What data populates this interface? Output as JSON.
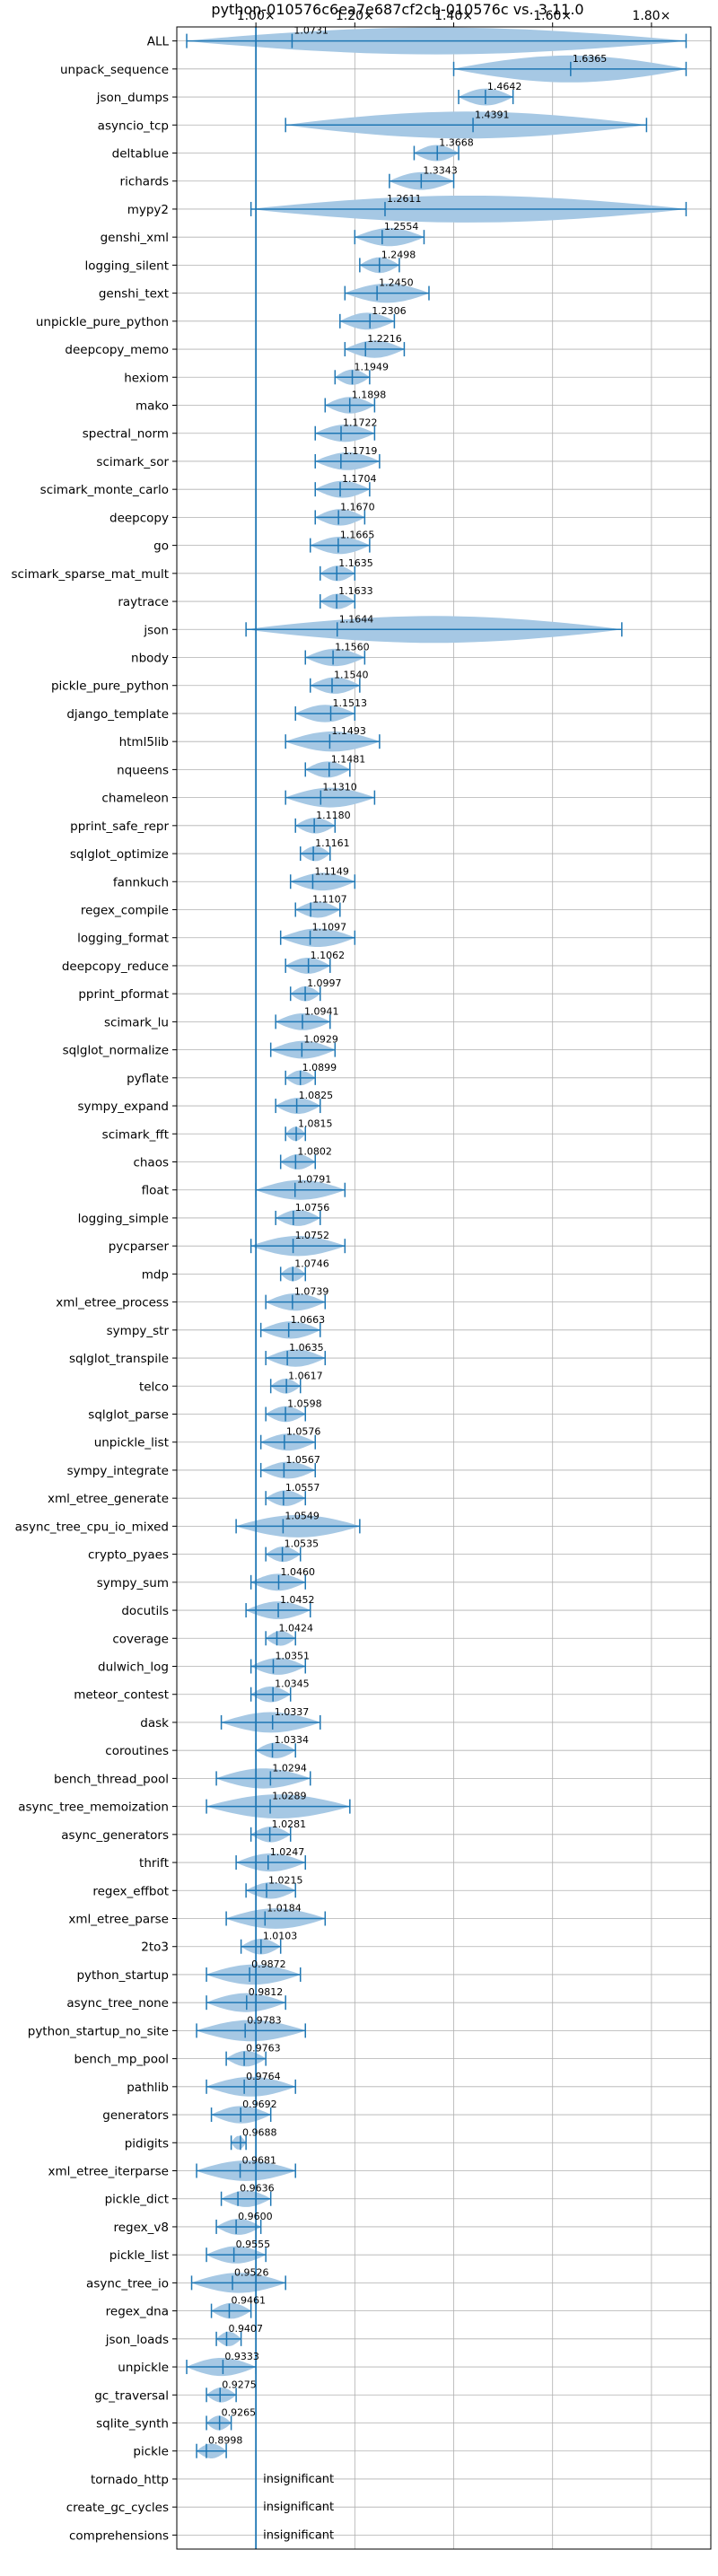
{
  "chart_data": {
    "type": "violin",
    "title": "python-010576c6ea7e687cf2cb-010576c vs. 3.11.0",
    "xlabel": "",
    "ylabel": "",
    "xlim": [
      0.84,
      1.92
    ],
    "xticks": [
      1.0,
      1.2,
      1.4,
      1.6,
      1.8
    ],
    "xtick_labels": [
      "1.00×",
      "1.20×",
      "1.40×",
      "1.60×",
      "1.80×"
    ],
    "reference_line": 1.0,
    "grid": true,
    "insignificant_label": "insignificant",
    "benchmarks": [
      {
        "name": "ALL",
        "mean_label": "1.0731",
        "mean": 1.0731,
        "min": 0.86,
        "max": 1.87
      },
      {
        "name": "unpack_sequence",
        "mean_label": "1.6365",
        "mean": 1.6365,
        "min": 1.4,
        "max": 1.87
      },
      {
        "name": "json_dumps",
        "mean_label": "1.4642",
        "mean": 1.4642,
        "min": 1.41,
        "max": 1.52
      },
      {
        "name": "asyncio_tcp",
        "mean_label": "1.4391",
        "mean": 1.4391,
        "min": 1.06,
        "max": 1.79
      },
      {
        "name": "deltablue",
        "mean_label": "1.3668",
        "mean": 1.3668,
        "min": 1.32,
        "max": 1.41
      },
      {
        "name": "richards",
        "mean_label": "1.3343",
        "mean": 1.3343,
        "min": 1.27,
        "max": 1.4
      },
      {
        "name": "mypy2",
        "mean_label": "1.2611",
        "mean": 1.2611,
        "min": 0.99,
        "max": 1.87
      },
      {
        "name": "genshi_xml",
        "mean_label": "1.2554",
        "mean": 1.2554,
        "min": 1.2,
        "max": 1.34
      },
      {
        "name": "logging_silent",
        "mean_label": "1.2498",
        "mean": 1.2498,
        "min": 1.21,
        "max": 1.29
      },
      {
        "name": "genshi_text",
        "mean_label": "1.2450",
        "mean": 1.245,
        "min": 1.18,
        "max": 1.35
      },
      {
        "name": "unpickle_pure_python",
        "mean_label": "1.2306",
        "mean": 1.2306,
        "min": 1.17,
        "max": 1.28
      },
      {
        "name": "deepcopy_memo",
        "mean_label": "1.2216",
        "mean": 1.2216,
        "min": 1.18,
        "max": 1.3
      },
      {
        "name": "hexiom",
        "mean_label": "1.1949",
        "mean": 1.1949,
        "min": 1.16,
        "max": 1.23
      },
      {
        "name": "mako",
        "mean_label": "1.1898",
        "mean": 1.1898,
        "min": 1.14,
        "max": 1.24
      },
      {
        "name": "spectral_norm",
        "mean_label": "1.1722",
        "mean": 1.1722,
        "min": 1.12,
        "max": 1.24
      },
      {
        "name": "scimark_sor",
        "mean_label": "1.1719",
        "mean": 1.1719,
        "min": 1.12,
        "max": 1.25
      },
      {
        "name": "scimark_monte_carlo",
        "mean_label": "1.1704",
        "mean": 1.1704,
        "min": 1.12,
        "max": 1.23
      },
      {
        "name": "deepcopy",
        "mean_label": "1.1670",
        "mean": 1.167,
        "min": 1.12,
        "max": 1.22
      },
      {
        "name": "go",
        "mean_label": "1.1665",
        "mean": 1.1665,
        "min": 1.11,
        "max": 1.23
      },
      {
        "name": "scimark_sparse_mat_mult",
        "mean_label": "1.1635",
        "mean": 1.1635,
        "min": 1.13,
        "max": 1.2
      },
      {
        "name": "raytrace",
        "mean_label": "1.1633",
        "mean": 1.1633,
        "min": 1.13,
        "max": 1.2
      },
      {
        "name": "json",
        "mean_label": "1.1644",
        "mean": 1.1644,
        "min": 0.98,
        "max": 1.74
      },
      {
        "name": "nbody",
        "mean_label": "1.1560",
        "mean": 1.156,
        "min": 1.1,
        "max": 1.22
      },
      {
        "name": "pickle_pure_python",
        "mean_label": "1.1540",
        "mean": 1.154,
        "min": 1.11,
        "max": 1.21
      },
      {
        "name": "django_template",
        "mean_label": "1.1513",
        "mean": 1.1513,
        "min": 1.08,
        "max": 1.2
      },
      {
        "name": "html5lib",
        "mean_label": "1.1493",
        "mean": 1.1493,
        "min": 1.06,
        "max": 1.25
      },
      {
        "name": "nqueens",
        "mean_label": "1.1481",
        "mean": 1.1481,
        "min": 1.1,
        "max": 1.19
      },
      {
        "name": "chameleon",
        "mean_label": "1.1310",
        "mean": 1.131,
        "min": 1.06,
        "max": 1.24
      },
      {
        "name": "pprint_safe_repr",
        "mean_label": "1.1180",
        "mean": 1.118,
        "min": 1.08,
        "max": 1.16
      },
      {
        "name": "sqlglot_optimize",
        "mean_label": "1.1161",
        "mean": 1.1161,
        "min": 1.09,
        "max": 1.15
      },
      {
        "name": "fannkuch",
        "mean_label": "1.1149",
        "mean": 1.1149,
        "min": 1.07,
        "max": 1.2
      },
      {
        "name": "regex_compile",
        "mean_label": "1.1107",
        "mean": 1.1107,
        "min": 1.08,
        "max": 1.17
      },
      {
        "name": "logging_format",
        "mean_label": "1.1097",
        "mean": 1.1097,
        "min": 1.05,
        "max": 1.2
      },
      {
        "name": "deepcopy_reduce",
        "mean_label": "1.1062",
        "mean": 1.1062,
        "min": 1.06,
        "max": 1.15
      },
      {
        "name": "pprint_pformat",
        "mean_label": "1.0997",
        "mean": 1.0997,
        "min": 1.07,
        "max": 1.13
      },
      {
        "name": "scimark_lu",
        "mean_label": "1.0941",
        "mean": 1.0941,
        "min": 1.04,
        "max": 1.15
      },
      {
        "name": "sqlglot_normalize",
        "mean_label": "1.0929",
        "mean": 1.0929,
        "min": 1.03,
        "max": 1.16
      },
      {
        "name": "pyflate",
        "mean_label": "1.0899",
        "mean": 1.0899,
        "min": 1.06,
        "max": 1.12
      },
      {
        "name": "sympy_expand",
        "mean_label": "1.0825",
        "mean": 1.0825,
        "min": 1.04,
        "max": 1.13
      },
      {
        "name": "scimark_fft",
        "mean_label": "1.0815",
        "mean": 1.0815,
        "min": 1.06,
        "max": 1.1
      },
      {
        "name": "chaos",
        "mean_label": "1.0802",
        "mean": 1.0802,
        "min": 1.05,
        "max": 1.12
      },
      {
        "name": "float",
        "mean_label": "1.0791",
        "mean": 1.0791,
        "min": 1.0,
        "max": 1.18
      },
      {
        "name": "logging_simple",
        "mean_label": "1.0756",
        "mean": 1.0756,
        "min": 1.04,
        "max": 1.13
      },
      {
        "name": "pycparser",
        "mean_label": "1.0752",
        "mean": 1.0752,
        "min": 0.99,
        "max": 1.18
      },
      {
        "name": "mdp",
        "mean_label": "1.0746",
        "mean": 1.0746,
        "min": 1.05,
        "max": 1.1
      },
      {
        "name": "xml_etree_process",
        "mean_label": "1.0739",
        "mean": 1.0739,
        "min": 1.02,
        "max": 1.14
      },
      {
        "name": "sympy_str",
        "mean_label": "1.0663",
        "mean": 1.0663,
        "min": 1.01,
        "max": 1.13
      },
      {
        "name": "sqlglot_transpile",
        "mean_label": "1.0635",
        "mean": 1.0635,
        "min": 1.02,
        "max": 1.14
      },
      {
        "name": "telco",
        "mean_label": "1.0617",
        "mean": 1.0617,
        "min": 1.03,
        "max": 1.09
      },
      {
        "name": "sqlglot_parse",
        "mean_label": "1.0598",
        "mean": 1.0598,
        "min": 1.02,
        "max": 1.1
      },
      {
        "name": "unpickle_list",
        "mean_label": "1.0576",
        "mean": 1.0576,
        "min": 1.01,
        "max": 1.12
      },
      {
        "name": "sympy_integrate",
        "mean_label": "1.0567",
        "mean": 1.0567,
        "min": 1.01,
        "max": 1.12
      },
      {
        "name": "xml_etree_generate",
        "mean_label": "1.0557",
        "mean": 1.0557,
        "min": 1.02,
        "max": 1.1
      },
      {
        "name": "async_tree_cpu_io_mixed",
        "mean_label": "1.0549",
        "mean": 1.0549,
        "min": 0.96,
        "max": 1.21
      },
      {
        "name": "crypto_pyaes",
        "mean_label": "1.0535",
        "mean": 1.0535,
        "min": 1.02,
        "max": 1.09
      },
      {
        "name": "sympy_sum",
        "mean_label": "1.0460",
        "mean": 1.046,
        "min": 0.99,
        "max": 1.1
      },
      {
        "name": "docutils",
        "mean_label": "1.0452",
        "mean": 1.0452,
        "min": 0.98,
        "max": 1.11
      },
      {
        "name": "coverage",
        "mean_label": "1.0424",
        "mean": 1.0424,
        "min": 1.02,
        "max": 1.08
      },
      {
        "name": "dulwich_log",
        "mean_label": "1.0351",
        "mean": 1.0351,
        "min": 0.99,
        "max": 1.1
      },
      {
        "name": "meteor_contest",
        "mean_label": "1.0345",
        "mean": 1.0345,
        "min": 0.99,
        "max": 1.07
      },
      {
        "name": "dask",
        "mean_label": "1.0337",
        "mean": 1.0337,
        "min": 0.93,
        "max": 1.13
      },
      {
        "name": "coroutines",
        "mean_label": "1.0334",
        "mean": 1.0334,
        "min": 1.0,
        "max": 1.08
      },
      {
        "name": "bench_thread_pool",
        "mean_label": "1.0294",
        "mean": 1.0294,
        "min": 0.92,
        "max": 1.11
      },
      {
        "name": "async_tree_memoization",
        "mean_label": "1.0289",
        "mean": 1.0289,
        "min": 0.9,
        "max": 1.19
      },
      {
        "name": "async_generators",
        "mean_label": "1.0281",
        "mean": 1.0281,
        "min": 0.99,
        "max": 1.07
      },
      {
        "name": "thrift",
        "mean_label": "1.0247",
        "mean": 1.0247,
        "min": 0.96,
        "max": 1.1
      },
      {
        "name": "regex_effbot",
        "mean_label": "1.0215",
        "mean": 1.0215,
        "min": 0.98,
        "max": 1.08
      },
      {
        "name": "xml_etree_parse",
        "mean_label": "1.0184",
        "mean": 1.0184,
        "min": 0.94,
        "max": 1.14
      },
      {
        "name": "2to3",
        "mean_label": "1.0103",
        "mean": 1.0103,
        "min": 0.97,
        "max": 1.05
      },
      {
        "name": "python_startup",
        "mean_label": "0.9872",
        "mean": 0.9872,
        "min": 0.9,
        "max": 1.09
      },
      {
        "name": "async_tree_none",
        "mean_label": "0.9812",
        "mean": 0.9812,
        "min": 0.9,
        "max": 1.06
      },
      {
        "name": "python_startup_no_site",
        "mean_label": "0.9783",
        "mean": 0.9783,
        "min": 0.88,
        "max": 1.1
      },
      {
        "name": "bench_mp_pool",
        "mean_label": "0.9763",
        "mean": 0.9763,
        "min": 0.94,
        "max": 1.02
      },
      {
        "name": "pathlib",
        "mean_label": "0.9764",
        "mean": 0.9764,
        "min": 0.9,
        "max": 1.08
      },
      {
        "name": "generators",
        "mean_label": "0.9692",
        "mean": 0.9692,
        "min": 0.91,
        "max": 1.03
      },
      {
        "name": "pidigits",
        "mean_label": "0.9688",
        "mean": 0.9688,
        "min": 0.95,
        "max": 0.98
      },
      {
        "name": "xml_etree_iterparse",
        "mean_label": "0.9681",
        "mean": 0.9681,
        "min": 0.88,
        "max": 1.08
      },
      {
        "name": "pickle_dict",
        "mean_label": "0.9636",
        "mean": 0.9636,
        "min": 0.93,
        "max": 1.03
      },
      {
        "name": "regex_v8",
        "mean_label": "0.9600",
        "mean": 0.96,
        "min": 0.92,
        "max": 1.01
      },
      {
        "name": "pickle_list",
        "mean_label": "0.9555",
        "mean": 0.9555,
        "min": 0.9,
        "max": 1.02
      },
      {
        "name": "async_tree_io",
        "mean_label": "0.9526",
        "mean": 0.9526,
        "min": 0.87,
        "max": 1.06
      },
      {
        "name": "regex_dna",
        "mean_label": "0.9461",
        "mean": 0.9461,
        "min": 0.91,
        "max": 0.99
      },
      {
        "name": "json_loads",
        "mean_label": "0.9407",
        "mean": 0.9407,
        "min": 0.92,
        "max": 0.97
      },
      {
        "name": "unpickle",
        "mean_label": "0.9333",
        "mean": 0.9333,
        "min": 0.86,
        "max": 1.0
      },
      {
        "name": "gc_traversal",
        "mean_label": "0.9275",
        "mean": 0.9275,
        "min": 0.9,
        "max": 0.96
      },
      {
        "name": "sqlite_synth",
        "mean_label": "0.9265",
        "mean": 0.9265,
        "min": 0.9,
        "max": 0.95
      },
      {
        "name": "pickle",
        "mean_label": "0.8998",
        "mean": 0.8998,
        "min": 0.88,
        "max": 0.94
      },
      {
        "name": "tornado_http",
        "insignificant": true
      },
      {
        "name": "create_gc_cycles",
        "insignificant": true
      },
      {
        "name": "comprehensions",
        "insignificant": true
      }
    ]
  },
  "colors": {
    "body": "#a6c8e4",
    "line": "#1f77b4",
    "grid": "#b0b0b0",
    "axis": "#000000"
  }
}
